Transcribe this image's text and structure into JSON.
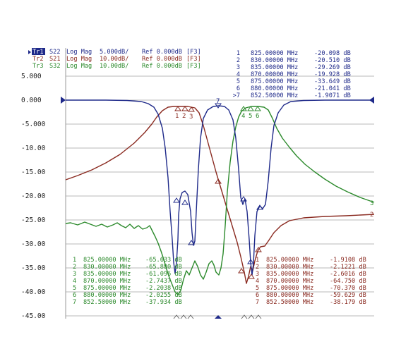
{
  "traces": [
    {
      "id": "Tr1",
      "param": "S22",
      "format": "Log Mag",
      "scale": "5.000dB/",
      "ref": "Ref 0.000dB",
      "cal": "[F3]",
      "color": "#1f2a8a"
    },
    {
      "id": "Tr2",
      "param": "S21",
      "format": "Log Mag",
      "scale": "10.00dB/",
      "ref": "Ref 0.000dB",
      "cal": "[F3]",
      "color": "#8a2a20"
    },
    {
      "id": "Tr3",
      "param": "S32",
      "format": "Log Mag",
      "scale": "10.00dB/",
      "ref": "Ref 0.000dB",
      "cal": "[F3]",
      "color": "#2c8a2c"
    }
  ],
  "y_tick_labels": [
    "5.000",
    "0.000",
    "-5.000",
    "-10.00",
    "-15.00",
    "-20.00",
    "-25.00",
    "-30.00",
    "-35.00",
    "-40.00",
    "-45.00"
  ],
  "marker_table_tr1": [
    {
      "n": "1",
      "freq": "825.00000 MHz",
      "val": "-20.098 dB"
    },
    {
      "n": "2",
      "freq": "830.00000 MHz",
      "val": "-20.510 dB"
    },
    {
      "n": "3",
      "freq": "835.00000 MHz",
      "val": "-29.269 dB"
    },
    {
      "n": "4",
      "freq": "870.00000 MHz",
      "val": "-19.928 dB"
    },
    {
      "n": "5",
      "freq": "875.00000 MHz",
      "val": "-33.649 dB"
    },
    {
      "n": "6",
      "freq": "880.00000 MHz",
      "val": "-21.041 dB"
    },
    {
      "n": ">7",
      "freq": "852.50000 MHz",
      "val": "-1.9071 dB"
    }
  ],
  "marker_table_tr3": [
    {
      "n": "1",
      "freq": "825.00000 MHz",
      "val": "-65.633 dB"
    },
    {
      "n": "2",
      "freq": "830.00000 MHz",
      "val": "-65.880 dB"
    },
    {
      "n": "3",
      "freq": "835.00000 MHz",
      "val": "-61.096 dB"
    },
    {
      "n": "4",
      "freq": "870.00000 MHz",
      "val": "-2.7437 dB"
    },
    {
      "n": "5",
      "freq": "875.00000 MHz",
      "val": "-2.2038 dB"
    },
    {
      "n": "6",
      "freq": "880.00000 MHz",
      "val": "-2.0255 dB"
    },
    {
      "n": "7",
      "freq": "852.50000 MHz",
      "val": "-37.934 dB"
    }
  ],
  "marker_table_tr2": [
    {
      "n": "1",
      "freq": "825.00000 MHz",
      "val": "-1.9108 dB"
    },
    {
      "n": "2",
      "freq": "830.00000 MHz",
      "val": "-2.1221 dB"
    },
    {
      "n": "3",
      "freq": "835.00000 MHz",
      "val": "-2.6016 dB"
    },
    {
      "n": "4",
      "freq": "870.00000 MHz",
      "val": "-64.750 dB"
    },
    {
      "n": "5",
      "freq": "875.00000 MHz",
      "val": "-70.370 dB"
    },
    {
      "n": "6",
      "freq": "880.00000 MHz",
      "val": "-59.629 dB"
    },
    {
      "n": "7",
      "freq": "852.50000 MHz",
      "val": "-38.179 dB"
    }
  ],
  "trace_end_labels": {
    "tr3": "3",
    "tr2": "2"
  },
  "marker_labels_passband_left": [
    "1",
    "2",
    "3"
  ],
  "marker_labels_passband_right": [
    "4",
    "5",
    "6"
  ],
  "marker_label_center": "7"
}
